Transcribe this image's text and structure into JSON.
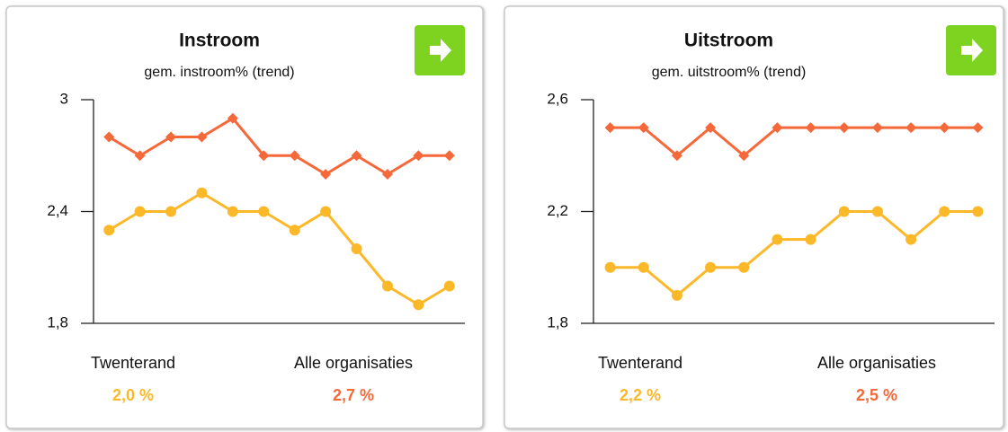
{
  "chart_data": [
    {
      "type": "line",
      "title": "Instroom",
      "subtitle": "gem. instroom% (trend)",
      "categories": [
        null,
        null,
        null,
        null,
        null,
        null,
        null,
        null,
        null,
        null,
        null,
        null
      ],
      "ylim": [
        1.8,
        3
      ],
      "yticks": [
        {
          "value": 1.8,
          "label": "1,8"
        },
        {
          "value": 2.4,
          "label": "2,4"
        },
        3
      ],
      "series": [
        {
          "name": "Twenterand",
          "color": "#fbb829",
          "marker": "circle",
          "current_label": "2,0 %",
          "values": [
            2.3,
            2.4,
            2.4,
            2.5,
            2.4,
            2.4,
            2.3,
            2.4,
            2.2,
            2.0,
            1.9,
            2.0
          ]
        },
        {
          "name": "Alle organisaties",
          "color": "#f4683a",
          "marker": "diamond",
          "current_label": "2,7 %",
          "values": [
            2.8,
            2.7,
            2.8,
            2.8,
            2.9,
            2.7,
            2.7,
            2.6,
            2.7,
            2.6,
            2.7,
            2.7
          ]
        }
      ]
    },
    {
      "type": "line",
      "title": "Uitstroom",
      "subtitle": "gem. uitstroom% (trend)",
      "categories": [
        null,
        null,
        null,
        null,
        null,
        null,
        null,
        null,
        null,
        null,
        null,
        null
      ],
      "ylim": [
        1.8,
        2.6
      ],
      "yticks": [
        {
          "value": 1.8,
          "label": "1,8"
        },
        {
          "value": 2.2,
          "label": "2,2"
        },
        {
          "value": 2.6,
          "label": "2,6"
        }
      ],
      "series": [
        {
          "name": "Twenterand",
          "color": "#fbb829",
          "marker": "circle",
          "current_label": "2,2 %",
          "values": [
            2.0,
            2.0,
            1.9,
            2.0,
            2.0,
            2.1,
            2.1,
            2.2,
            2.2,
            2.1,
            2.2,
            2.2
          ]
        },
        {
          "name": "Alle organisaties",
          "color": "#f4683a",
          "marker": "diamond",
          "current_label": "2,5 %",
          "values": [
            2.5,
            2.5,
            2.4,
            2.5,
            2.4,
            2.5,
            2.5,
            2.5,
            2.5,
            2.5,
            2.5,
            2.5
          ]
        }
      ]
    }
  ]
}
